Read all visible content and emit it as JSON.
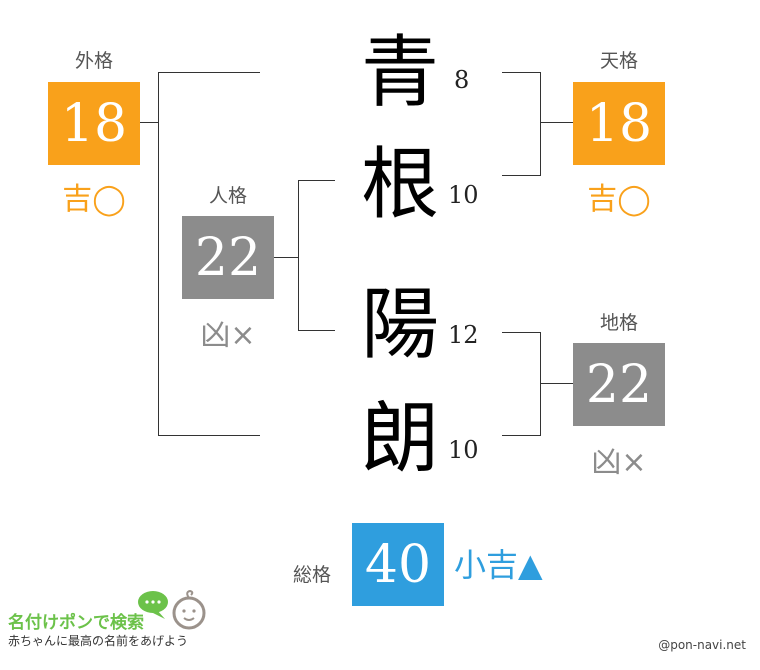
{
  "colors": {
    "kichi": "#f9a11b",
    "kyo": "#8c8c8c",
    "shokichi": "#2f9ede"
  },
  "name": {
    "chars": [
      "青",
      "根",
      "陽",
      "朗"
    ],
    "strokes": [
      "8",
      "10",
      "12",
      "10"
    ]
  },
  "gaikaku": {
    "label": "外格",
    "value": "18",
    "fortune": "吉◯"
  },
  "tenkaku": {
    "label": "天格",
    "value": "18",
    "fortune": "吉◯"
  },
  "jinkaku": {
    "label": "人格",
    "value": "22",
    "fortune": "凶×"
  },
  "chikaku": {
    "label": "地格",
    "value": "22",
    "fortune": "凶×"
  },
  "soukaku": {
    "label": "総格",
    "value": "40",
    "fortune": "小吉▲"
  },
  "logo": {
    "title": "名付けポンで検索",
    "tagline": "赤ちゃんに最高の名前をあげよう",
    "icon": "baby-face-chat-icon"
  },
  "credit": "@pon-navi.net"
}
